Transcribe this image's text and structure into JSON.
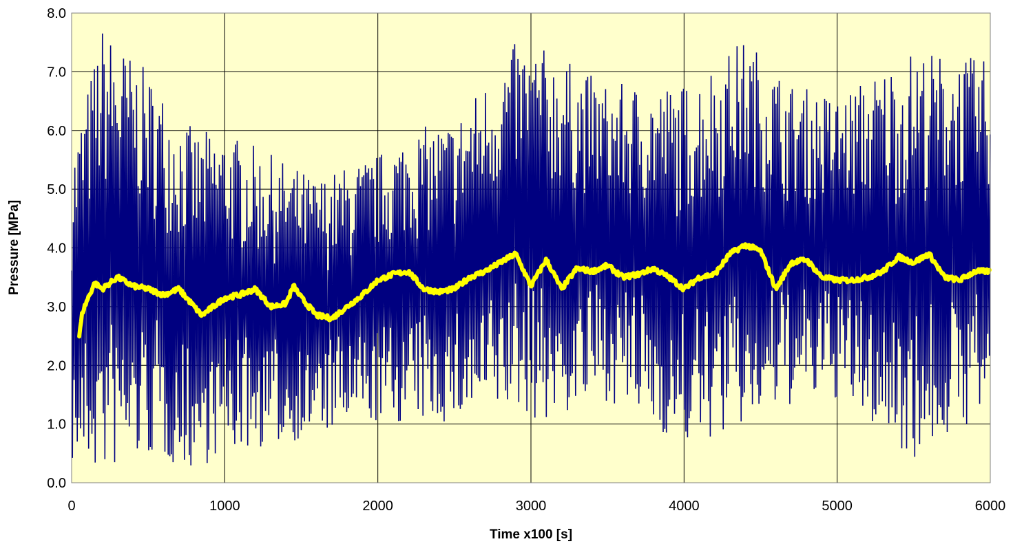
{
  "chart_data": {
    "type": "line",
    "title": "",
    "xlabel": "Time x100 [s]",
    "ylabel": "Pressure [MPa]",
    "xlim": [
      0,
      6000
    ],
    "ylim": [
      0,
      8
    ],
    "x_ticks": [
      "0",
      "1000",
      "2000",
      "3000",
      "4000",
      "5000",
      "6000"
    ],
    "y_ticks": [
      "0.0",
      "1.0",
      "2.0",
      "3.0",
      "4.0",
      "5.0",
      "6.0",
      "7.0",
      "8.0"
    ],
    "grid": true,
    "legend": "none",
    "colors": {
      "plot_background": "#ffffcc",
      "raw_series": "#000080",
      "mean_series": "#ffff00",
      "grid": "#000000"
    },
    "series": [
      {
        "role": "raw",
        "x_range": [
          0,
          6000
        ],
        "mean_envelope": {
          "x": [
            0,
            200,
            500,
            800,
            1000,
            1300,
            1600,
            2000,
            2200,
            2500,
            2900,
            3100,
            3500,
            4000,
            4400,
            4700,
            5000,
            5500,
            6000
          ],
          "upper": [
            5.6,
            7.8,
            7.0,
            6.0,
            6.0,
            5.6,
            5.2,
            5.6,
            6.0,
            6.2,
            7.5,
            7.4,
            6.8,
            6.8,
            7.6,
            6.8,
            6.6,
            7.4,
            7.2
          ],
          "lower": [
            0.3,
            0.1,
            0.4,
            0.2,
            0.5,
            0.6,
            0.8,
            1.0,
            1.0,
            1.0,
            1.2,
            1.0,
            1.4,
            0.6,
            0.9,
            1.3,
            1.4,
            0.4,
            1.2
          ]
        }
      },
      {
        "role": "moving-average",
        "x": [
          50,
          70,
          100,
          150,
          200,
          300,
          400,
          500,
          600,
          700,
          800,
          850,
          900,
          1000,
          1100,
          1200,
          1300,
          1400,
          1450,
          1500,
          1600,
          1700,
          1800,
          1900,
          2000,
          2100,
          2200,
          2300,
          2400,
          2500,
          2600,
          2700,
          2800,
          2900,
          3000,
          3100,
          3200,
          3300,
          3400,
          3500,
          3600,
          3700,
          3800,
          3900,
          4000,
          4100,
          4200,
          4300,
          4400,
          4500,
          4600,
          4700,
          4800,
          4900,
          5000,
          5100,
          5200,
          5300,
          5400,
          5500,
          5600,
          5700,
          5800,
          5900,
          6000
        ],
        "y": [
          2.5,
          2.9,
          3.1,
          3.4,
          3.3,
          3.5,
          3.35,
          3.3,
          3.2,
          3.3,
          3.0,
          2.85,
          2.95,
          3.15,
          3.2,
          3.3,
          3.0,
          3.05,
          3.35,
          3.15,
          2.85,
          2.8,
          3.0,
          3.2,
          3.45,
          3.55,
          3.6,
          3.3,
          3.25,
          3.3,
          3.5,
          3.6,
          3.75,
          3.9,
          3.35,
          3.8,
          3.3,
          3.65,
          3.6,
          3.7,
          3.5,
          3.55,
          3.65,
          3.5,
          3.3,
          3.5,
          3.55,
          3.9,
          4.05,
          3.95,
          3.3,
          3.75,
          3.8,
          3.5,
          3.45,
          3.45,
          3.5,
          3.6,
          3.85,
          3.75,
          3.9,
          3.5,
          3.45,
          3.6,
          3.6
        ]
      }
    ]
  }
}
